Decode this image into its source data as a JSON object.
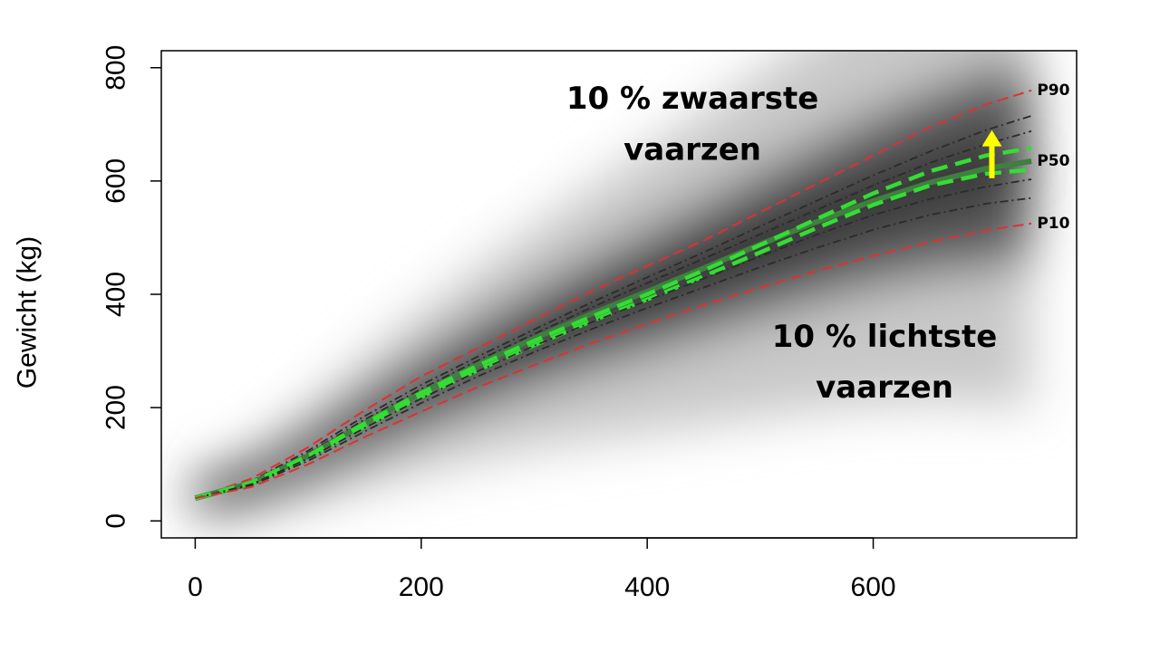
{
  "chart_data": {
    "type": "line",
    "title": "",
    "xlabel": "",
    "ylabel": "Gewicht (kg)",
    "xlim": [
      -30,
      780
    ],
    "ylim": [
      -30,
      830
    ],
    "x_ticks": [
      0,
      200,
      400,
      600
    ],
    "y_ticks": [
      0,
      200,
      400,
      600,
      800
    ],
    "grid": false,
    "background": "grayscale density cloud of observed weights around the median curve",
    "x": [
      0,
      50,
      100,
      150,
      200,
      250,
      300,
      350,
      400,
      450,
      500,
      550,
      600,
      650,
      700,
      740
    ],
    "series": [
      {
        "name": "P90",
        "style": "red dashed",
        "color": "#e03030",
        "values": [
          40,
          75,
          130,
          195,
          255,
          305,
          355,
          405,
          450,
          495,
          545,
          595,
          645,
          695,
          735,
          760
        ]
      },
      {
        "name": "",
        "style": "dark dash-dot",
        "color": "#2b2b2b",
        "values": [
          40,
          71,
          124,
          185,
          240,
          290,
          338,
          385,
          430,
          474,
          520,
          565,
          610,
          652,
          690,
          715
        ]
      },
      {
        "name": "",
        "style": "dark dash-dot",
        "color": "#2b2b2b",
        "values": [
          40,
          69,
          120,
          179,
          233,
          283,
          330,
          376,
          420,
          463,
          506,
          549,
          592,
          632,
          665,
          688
        ]
      },
      {
        "name": "P50",
        "style": "solid dark green",
        "color": "#3f7f3f",
        "values": [
          40,
          67,
          115,
          172,
          226,
          276,
          322,
          365,
          405,
          446,
          488,
          528,
          565,
          597,
          622,
          635
        ]
      },
      {
        "name": "",
        "style": "bright green dashed",
        "color": "#33dd33",
        "values": [
          40,
          68,
          115,
          172,
          226,
          274,
          318,
          360,
          400,
          442,
          487,
          533,
          578,
          617,
          645,
          658
        ]
      },
      {
        "name": "",
        "style": "bright green dashed",
        "color": "#33dd33",
        "values": [
          40,
          66,
          112,
          167,
          219,
          266,
          310,
          352,
          391,
          432,
          474,
          517,
          558,
          592,
          613,
          620
        ]
      },
      {
        "name": "",
        "style": "dark dash-dot",
        "color": "#2b2b2b",
        "values": [
          40,
          65,
          110,
          164,
          216,
          264,
          309,
          350,
          389,
          428,
          467,
          505,
          540,
          568,
          590,
          603
        ]
      },
      {
        "name": "",
        "style": "dark dash-dot",
        "color": "#2b2b2b",
        "values": [
          40,
          63,
          106,
          158,
          208,
          255,
          298,
          338,
          376,
          412,
          448,
          482,
          514,
          540,
          560,
          570
        ]
      },
      {
        "name": "P10",
        "style": "red dashed",
        "color": "#e03030",
        "values": [
          40,
          60,
          100,
          148,
          193,
          236,
          275,
          313,
          348,
          381,
          412,
          441,
          468,
          492,
          513,
          525
        ]
      }
    ],
    "annotations": [
      {
        "text": "10 % zwaarste",
        "x": 440,
        "y": 745
      },
      {
        "text": "vaarzen",
        "x": 440,
        "y": 655
      },
      {
        "text": "10 % lichtste",
        "x": 610,
        "y": 325
      },
      {
        "text": "vaarzen",
        "x": 610,
        "y": 235
      },
      {
        "text": "P90",
        "x": 745,
        "y": 760
      },
      {
        "text": "P50",
        "x": 745,
        "y": 635
      },
      {
        "text": "P10",
        "x": 745,
        "y": 525
      }
    ],
    "arrow": {
      "x": 705,
      "y_from": 605,
      "y_to": 690,
      "color": "#ffff00"
    }
  }
}
